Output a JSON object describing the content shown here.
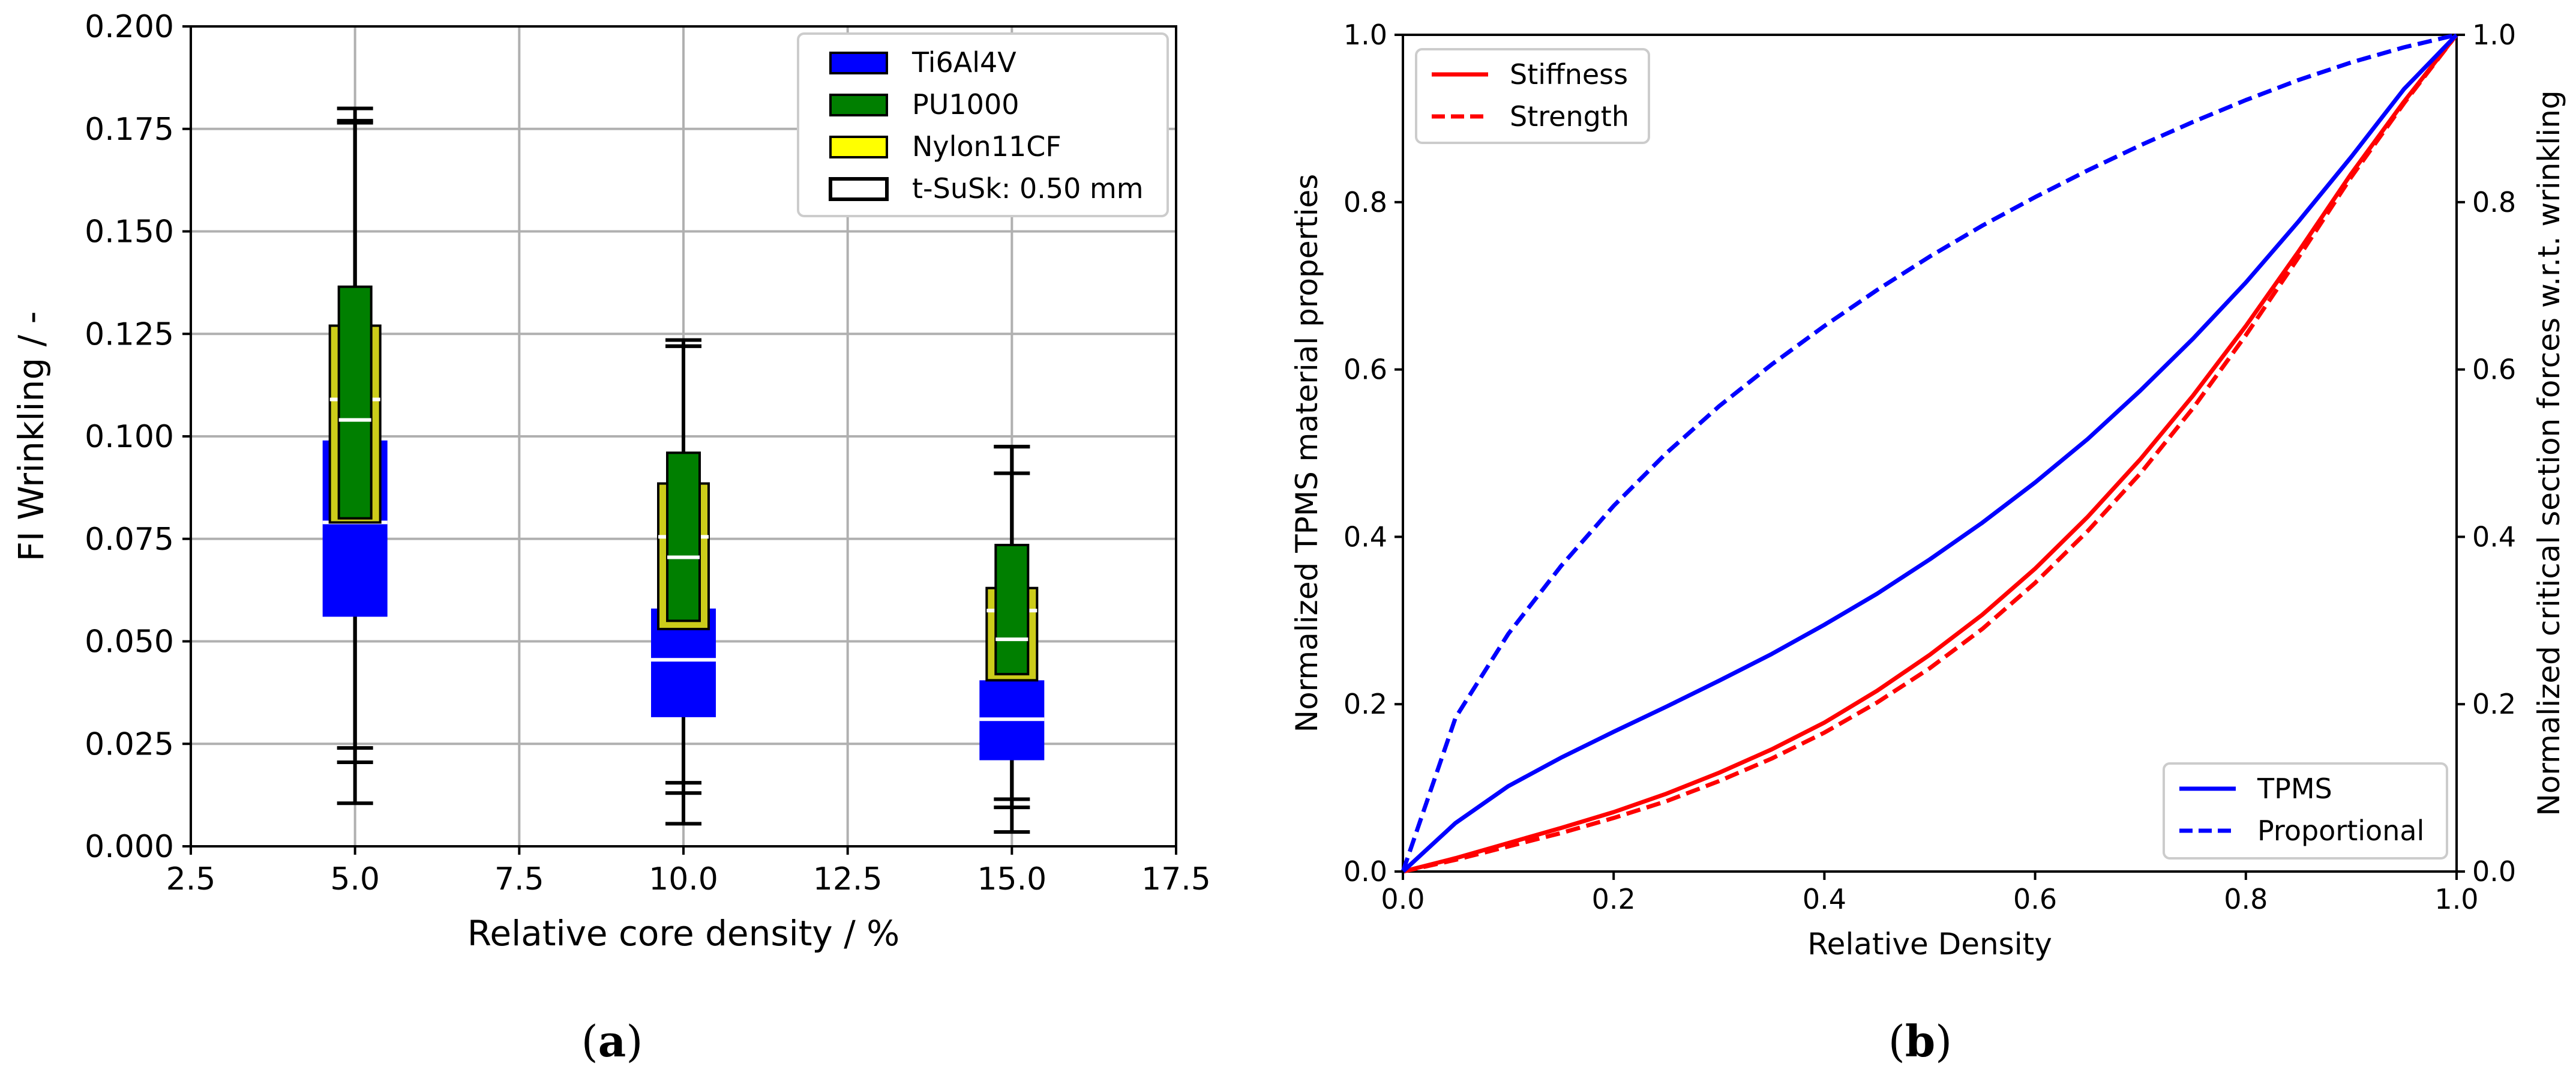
{
  "chart_data": [
    {
      "id": "a",
      "type": "box",
      "caption": "(a)",
      "caption_letter": "a",
      "xlabel": "Relative core density / %",
      "ylabel": "FI Wrinkling / -",
      "xlim": [
        2.5,
        17.5
      ],
      "ylim": [
        0.0,
        0.2
      ],
      "xticks": [
        "2.5",
        "5.0",
        "7.5",
        "10.0",
        "12.5",
        "15.0",
        "17.5"
      ],
      "yticks": [
        "0.000",
        "0.025",
        "0.050",
        "0.075",
        "0.100",
        "0.125",
        "0.150",
        "0.175",
        "0.200"
      ],
      "grid": true,
      "legend_position": "top-right",
      "legend": [
        {
          "label": "Ti6Al4V",
          "color": "#0000ff"
        },
        {
          "label": "PU1000",
          "color": "#007f00"
        },
        {
          "label": "Nylon11CF",
          "color": "#ffff00"
        },
        {
          "label": "t-SuSk: 0.50 mm",
          "color": "#ffffff"
        }
      ],
      "series": [
        {
          "name": "Ti6Al4V",
          "color": "#0000ff",
          "boxes": [
            {
              "x": 5.0,
              "whislo": 0.0105,
              "q1": 0.056,
              "med": 0.079,
              "q3": 0.099,
              "whishi": 0.18
            },
            {
              "x": 10.0,
              "whislo": 0.0055,
              "q1": 0.0315,
              "med": 0.0455,
              "q3": 0.058,
              "whishi": 0.1235
            },
            {
              "x": 15.0,
              "whislo": 0.0035,
              "q1": 0.021,
              "med": 0.031,
              "q3": 0.0405,
              "whishi": 0.0975
            }
          ]
        },
        {
          "name": "Nylon11CF",
          "color": "#cccc1a",
          "boxes": [
            {
              "x": 5.0,
              "whislo": 0.024,
              "q1": 0.079,
              "med": 0.109,
              "q3": 0.127,
              "whishi": 0.177
            },
            {
              "x": 10.0,
              "whislo": 0.0155,
              "q1": 0.053,
              "med": 0.0755,
              "q3": 0.0885,
              "whishi": 0.122
            },
            {
              "x": 15.0,
              "whislo": 0.0115,
              "q1": 0.0405,
              "med": 0.0575,
              "q3": 0.063,
              "whishi": 0.0975
            }
          ]
        },
        {
          "name": "PU1000",
          "color": "#007f00",
          "boxes": [
            {
              "x": 5.0,
              "whislo": 0.0205,
              "q1": 0.08,
              "med": 0.104,
              "q3": 0.1365,
              "whishi": 0.1765
            },
            {
              "x": 10.0,
              "whislo": 0.013,
              "q1": 0.055,
              "med": 0.0705,
              "q3": 0.096,
              "whishi": 0.122
            },
            {
              "x": 15.0,
              "whislo": 0.0095,
              "q1": 0.042,
              "med": 0.0505,
              "q3": 0.0735,
              "whishi": 0.091
            }
          ]
        }
      ]
    },
    {
      "id": "b",
      "type": "line",
      "caption": "(b)",
      "caption_letter": "b",
      "xlabel": "Relative Density",
      "ylabel_left": "Normalized TPMS material properties",
      "ylabel_right": "Normalized critical section forces w.r.t. wrinkling",
      "xlim": [
        0.0,
        1.0
      ],
      "ylim": [
        0.0,
        1.0
      ],
      "xticks": [
        "0.0",
        "0.2",
        "0.4",
        "0.6",
        "0.8",
        "1.0"
      ],
      "yticks": [
        "0.0",
        "0.2",
        "0.4",
        "0.6",
        "0.8",
        "1.0"
      ],
      "grid": false,
      "legend_left": [
        {
          "label": "Stiffness",
          "color": "#ff0000",
          "style": "solid"
        },
        {
          "label": "Strength",
          "color": "#ff0000",
          "style": "dashed"
        }
      ],
      "legend_right": [
        {
          "label": "TPMS",
          "color": "#0000ff",
          "style": "solid"
        },
        {
          "label": "Proportional",
          "color": "#0000ff",
          "style": "dashed"
        }
      ],
      "x": [
        0.0,
        0.05,
        0.1,
        0.15,
        0.2,
        0.25,
        0.3,
        0.35,
        0.4,
        0.45,
        0.5,
        0.55,
        0.6,
        0.65,
        0.7,
        0.75,
        0.8,
        0.85,
        0.9,
        0.95,
        1.0
      ],
      "series": [
        {
          "name": "Stiffness",
          "axis": "left",
          "color": "#ff0000",
          "style": "solid",
          "values": [
            0.0,
            0.016,
            0.034,
            0.052,
            0.071,
            0.093,
            0.118,
            0.146,
            0.178,
            0.216,
            0.259,
            0.307,
            0.362,
            0.424,
            0.493,
            0.569,
            0.652,
            0.741,
            0.834,
            0.92,
            1.0
          ]
        },
        {
          "name": "Strength",
          "axis": "left",
          "color": "#ff0000",
          "style": "dashed",
          "values": [
            0.0,
            0.014,
            0.03,
            0.046,
            0.064,
            0.084,
            0.108,
            0.135,
            0.166,
            0.202,
            0.243,
            0.29,
            0.345,
            0.407,
            0.476,
            0.554,
            0.641,
            0.734,
            0.83,
            0.918,
            1.0
          ]
        },
        {
          "name": "TPMS",
          "axis": "right",
          "color": "#0000ff",
          "style": "solid",
          "values": [
            0.0,
            0.058,
            0.102,
            0.136,
            0.167,
            0.197,
            0.228,
            0.26,
            0.295,
            0.332,
            0.373,
            0.417,
            0.465,
            0.517,
            0.575,
            0.637,
            0.704,
            0.777,
            0.854,
            0.935,
            1.0
          ]
        },
        {
          "name": "Proportional",
          "axis": "right",
          "color": "#0000ff",
          "style": "dashed",
          "values": [
            0.0,
            0.184,
            0.284,
            0.365,
            0.437,
            0.5,
            0.556,
            0.606,
            0.652,
            0.695,
            0.735,
            0.772,
            0.806,
            0.838,
            0.868,
            0.896,
            0.922,
            0.946,
            0.967,
            0.985,
            1.0
          ]
        }
      ]
    }
  ]
}
